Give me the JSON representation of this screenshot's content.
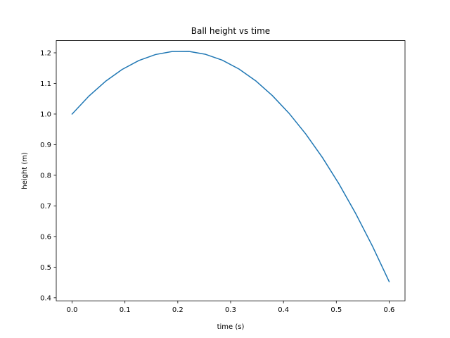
{
  "chart_data": {
    "type": "line",
    "title": "Ball height vs time",
    "xlabel": "time (s)",
    "ylabel": "height (m)",
    "xlim": [
      -0.03,
      0.63
    ],
    "ylim": [
      0.39,
      1.24
    ],
    "xticks": [
      0.0,
      0.1,
      0.2,
      0.3,
      0.4,
      0.5,
      0.6
    ],
    "xtick_labels": [
      "0.0",
      "0.1",
      "0.2",
      "0.3",
      "0.4",
      "0.5",
      "0.6"
    ],
    "yticks": [
      0.4,
      0.5,
      0.6,
      0.7,
      0.8,
      0.9,
      1.0,
      1.1,
      1.2
    ],
    "ytick_labels": [
      "0.4",
      "0.5",
      "0.6",
      "0.7",
      "0.8",
      "0.9",
      "1.0",
      "1.1",
      "1.2"
    ],
    "grid": false,
    "series": [
      {
        "color": "#1f77b4",
        "x": [
          0.0,
          0.0316,
          0.0632,
          0.0947,
          0.1263,
          0.1579,
          0.1895,
          0.2211,
          0.2526,
          0.2842,
          0.3158,
          0.3474,
          0.3789,
          0.4105,
          0.4421,
          0.4737,
          0.5053,
          0.5368,
          0.5684,
          0.6
        ],
        "y": [
          1.0,
          1.0583,
          1.1068,
          1.1457,
          1.1749,
          1.1944,
          1.2043,
          1.2045,
          1.195,
          1.1759,
          1.1471,
          1.1086,
          1.0604,
          1.0026,
          0.9351,
          0.858,
          0.7712,
          0.6747,
          0.5686,
          0.4528
        ]
      }
    ]
  }
}
